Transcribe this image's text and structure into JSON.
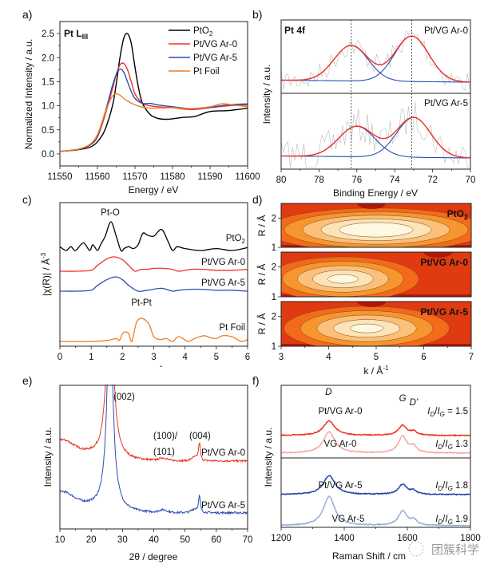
{
  "chart_data": [
    {
      "panel": "a)",
      "type": "line",
      "title": "Pt L_III",
      "xlabel": "Energy / eV",
      "ylabel": "Normalized Intensity / a.u.",
      "xlim": [
        11550,
        11600
      ],
      "ylim": [
        -0.25,
        2.75
      ],
      "xticks": [
        "11550",
        "11560",
        "11570",
        "11580",
        "11590",
        "11600"
      ],
      "yticks": [
        "0.0",
        "0.5",
        "1.0",
        "1.5",
        "2.0",
        "2.5"
      ],
      "legend": "top-right",
      "series": [
        {
          "name": "PtO2",
          "color": "#000000",
          "x": [
            11550,
            11555,
            11558,
            11560,
            11562,
            11564,
            11565,
            11566,
            11567,
            11568,
            11569,
            11570,
            11571,
            11572,
            11574,
            11576,
            11578,
            11580,
            11583,
            11586,
            11590,
            11595,
            11600
          ],
          "y": [
            0.05,
            0.09,
            0.14,
            0.25,
            0.5,
            1.0,
            1.45,
            2.0,
            2.4,
            2.5,
            2.3,
            1.8,
            1.35,
            1.05,
            0.82,
            0.74,
            0.72,
            0.73,
            0.76,
            0.78,
            0.88,
            0.9,
            0.95
          ]
        },
        {
          "name": "Pt/VG Ar-0",
          "color": "#ee3324",
          "x": [
            11550,
            11555,
            11558,
            11560,
            11562,
            11564,
            11565,
            11566,
            11567,
            11568,
            11569,
            11570,
            11572,
            11574,
            11576,
            11580,
            11585,
            11590,
            11595,
            11600
          ],
          "y": [
            0.05,
            0.1,
            0.18,
            0.35,
            0.8,
            1.35,
            1.65,
            1.85,
            1.88,
            1.75,
            1.5,
            1.25,
            1.05,
            1.0,
            0.98,
            0.96,
            0.92,
            0.96,
            1.0,
            1.02
          ]
        },
        {
          "name": "Pt/VG Ar-5",
          "color": "#2b4db5",
          "x": [
            11550,
            11555,
            11558,
            11560,
            11562,
            11564,
            11565,
            11566,
            11567,
            11568,
            11569,
            11570,
            11572,
            11574,
            11576,
            11580,
            11585,
            11590,
            11595,
            11600
          ],
          "y": [
            0.05,
            0.1,
            0.19,
            0.37,
            0.85,
            1.42,
            1.65,
            1.76,
            1.7,
            1.5,
            1.3,
            1.15,
            1.05,
            1.05,
            1.02,
            0.98,
            0.94,
            0.97,
            1.02,
            1.04
          ]
        },
        {
          "name": "Pt Foil",
          "color": "#f27c21",
          "x": [
            11550,
            11555,
            11558,
            11560,
            11562,
            11563,
            11564,
            11565,
            11566,
            11567,
            11568,
            11570,
            11572,
            11575,
            11580,
            11585,
            11590,
            11593,
            11596,
            11600
          ],
          "y": [
            0.05,
            0.1,
            0.2,
            0.4,
            0.85,
            1.05,
            1.2,
            1.25,
            1.22,
            1.15,
            1.1,
            1.02,
            0.97,
            0.95,
            0.96,
            0.94,
            0.98,
            1.04,
            1.02,
            0.98
          ]
        }
      ]
    },
    {
      "panel": "b)",
      "type": "line",
      "title": "Pt 4f",
      "xlabel": "Binding Energy / eV",
      "ylabel": "Intensity / a.u.",
      "xlim": [
        80,
        70
      ],
      "xticks": [
        "80",
        "78",
        "76",
        "74",
        "72",
        "70"
      ],
      "reference_lines": [
        76.3,
        73.1
      ],
      "subplots": [
        {
          "label": "Pt/VG Ar-0",
          "peaks": [
            {
              "center": 76.3,
              "height": 0.78,
              "width": 0.9
            },
            {
              "center": 73.1,
              "height": 1.0,
              "width": 0.9
            }
          ],
          "fit_color": "#ee3324",
          "component_color": "#2b4db5",
          "raw_color": "#bbbbbb"
        },
        {
          "label": "Pt/VG Ar-5",
          "peaks": [
            {
              "center": 76.0,
              "height": 0.65,
              "width": 0.95
            },
            {
              "center": 73.0,
              "height": 0.85,
              "width": 0.9
            }
          ],
          "fit_color": "#ee3324",
          "component_color": "#2b4db5",
          "raw_color": "#bbbbbb"
        }
      ]
    },
    {
      "panel": "c)",
      "type": "line",
      "xlabel": "R / Å",
      "ylabel": "|χ(R)| / Å^-3",
      "xlim": [
        0,
        6
      ],
      "xticks": [
        "0",
        "1",
        "2",
        "3",
        "4",
        "5",
        "6"
      ],
      "annotations": [
        "Pt-O",
        "Pt-Pt"
      ],
      "series": [
        {
          "name": "PtO2",
          "color": "#000000",
          "x": [
            0,
            0.2,
            0.35,
            0.5,
            0.75,
            0.95,
            1.05,
            1.2,
            1.3,
            1.45,
            1.63,
            1.8,
            1.95,
            2.05,
            2.2,
            2.35,
            2.5,
            2.65,
            2.8,
            3.0,
            3.25,
            3.45,
            3.6,
            3.75,
            4.0,
            4.5,
            5.0,
            5.5,
            6.0
          ],
          "y": [
            0.04,
            0.0,
            0.04,
            0.0,
            0.08,
            0.0,
            0.06,
            0.0,
            0.06,
            0.15,
            0.3,
            0.15,
            0.0,
            0.02,
            0.04,
            0.02,
            0.06,
            0.18,
            0.16,
            0.15,
            0.22,
            0.1,
            0.0,
            0.04,
            0.02,
            0.0,
            0.02,
            0.0,
            0.03
          ]
        },
        {
          "name": "Pt/VG Ar-0",
          "color": "#ee3324",
          "x": [
            0,
            0.5,
            1.0,
            1.2,
            1.5,
            1.75,
            2.0,
            2.2,
            2.4,
            2.6,
            2.8,
            3.0,
            3.3,
            3.6,
            3.8,
            4.2,
            4.6,
            5.0,
            5.5,
            6.0
          ],
          "y": [
            0.0,
            0.0,
            0.01,
            0.06,
            0.13,
            0.15,
            0.12,
            0.06,
            0.0,
            0.02,
            0.02,
            0.03,
            0.03,
            0.02,
            0.0,
            0.02,
            0.02,
            0.01,
            0.01,
            0.02
          ]
        },
        {
          "name": "Pt/VG Ar-5",
          "color": "#2b4db5",
          "x": [
            0,
            0.5,
            1.0,
            1.2,
            1.5,
            1.78,
            2.0,
            2.2,
            2.5,
            2.8,
            3.25,
            3.6,
            3.8,
            4.2,
            4.5,
            5.0,
            5.5,
            6.0
          ],
          "y": [
            0.0,
            0.0,
            0.01,
            0.06,
            0.12,
            0.15,
            0.12,
            0.06,
            0.0,
            0.01,
            0.03,
            0.0,
            0.01,
            0.02,
            0.02,
            0.01,
            0.01,
            0.0
          ]
        },
        {
          "name": "Pt Foil",
          "color": "#f27c21",
          "x": [
            0,
            0.5,
            1.0,
            1.5,
            1.8,
            1.9,
            2.0,
            2.1,
            2.2,
            2.3,
            2.45,
            2.63,
            2.85,
            3.0,
            3.2,
            3.4,
            3.6,
            3.8,
            4.1,
            4.3,
            4.6,
            4.8,
            5.0,
            5.2,
            5.5,
            5.8,
            6.0
          ],
          "y": [
            0.0,
            0.0,
            0.0,
            0.01,
            0.03,
            0.01,
            0.08,
            0.1,
            0.08,
            0.0,
            0.2,
            0.24,
            0.18,
            0.05,
            0.02,
            0.03,
            0.0,
            0.05,
            0.0,
            0.03,
            0.06,
            0.04,
            0.03,
            0.06,
            0.05,
            0.0,
            0.02
          ]
        }
      ]
    },
    {
      "panel": "d)",
      "type": "heatmap",
      "xlabel": "k / Å^-1",
      "ylabel": "R / Å",
      "xlim": [
        3,
        7
      ],
      "ylim": [
        1,
        2.5
      ],
      "xticks": [
        "3",
        "4",
        "5",
        "6",
        "7"
      ],
      "yticks": [
        "1",
        "2"
      ],
      "colormap": [
        "#b01808",
        "#e03a10",
        "#f26a1a",
        "#f7962e",
        "#fbc07a",
        "#fde4b8",
        "#fff8e0"
      ],
      "subplots": [
        {
          "label": "PtO2",
          "centers": [
            {
              "k": 5.0,
              "R": 1.6,
              "level": 6,
              "sk": 1.6,
              "sR": 0.25
            }
          ]
        },
        {
          "label": "Pt/VG Ar-0",
          "centers": [
            {
              "k": 4.3,
              "R": 1.6,
              "level": 5,
              "sk": 1.1,
              "sR": 0.35
            }
          ]
        },
        {
          "label": "Pt/VG Ar-5",
          "centers": [
            {
              "k": 4.8,
              "R": 1.6,
              "level": 5,
              "sk": 1.2,
              "sR": 0.3
            }
          ]
        }
      ]
    },
    {
      "panel": "e)",
      "type": "line",
      "xlabel": "2θ / degree",
      "ylabel": "Intensity / a.u.",
      "xlim": [
        10,
        70
      ],
      "xticks": [
        "10",
        "20",
        "30",
        "40",
        "50",
        "60",
        "70"
      ],
      "annotations": [
        "(002)",
        "(100)/",
        "(101)",
        "(004)"
      ],
      "peaks": [
        {
          "two_theta": 26.0,
          "label": "(002)"
        },
        {
          "two_theta": 43.0,
          "label": "(100)/(101)"
        },
        {
          "two_theta": 54.6,
          "label": "(004)"
        }
      ],
      "series": [
        {
          "name": "Pt/VG Ar-0",
          "color": "#ee3324"
        },
        {
          "name": "Pt/VG Ar-5",
          "color": "#2b4db5"
        }
      ]
    },
    {
      "panel": "f)",
      "type": "line",
      "xlabel": "Raman Shift / cm",
      "ylabel": "Intensity / a.u.",
      "xlim": [
        1200,
        1800
      ],
      "xticks": [
        "1200",
        "1400",
        "1600",
        "1800"
      ],
      "band_labels": [
        {
          "name": "D",
          "pos": 1350
        },
        {
          "name": "G",
          "pos": 1585
        },
        {
          "name": "D'",
          "pos": 1620
        }
      ],
      "series": [
        {
          "name": "Pt/VG Ar-0",
          "color": "#ee3324",
          "ratio_label": "= 1.5",
          "ID_IG": 1.5,
          "D": 0.65,
          "G": 0.45
        },
        {
          "name": "VG Ar-0",
          "color": "#f4a5a5",
          "ratio_label": "1.3",
          "ID_IG": 1.3,
          "D": 0.95,
          "G": 0.75
        },
        {
          "name": "Pt/VG Ar-5",
          "color": "#1f45a5",
          "ratio_label": "1.8",
          "ID_IG": 1.8,
          "D": 0.85,
          "G": 0.45
        },
        {
          "name": "VG Ar-5",
          "color": "#98acdc",
          "ratio_label": "1.9",
          "ID_IG": 1.9,
          "D": 1.3,
          "G": 0.65
        }
      ]
    }
  ],
  "labels": {
    "a": "a)",
    "b": "b)",
    "c": "c)",
    "d": "d)",
    "e": "e)",
    "f": "f)",
    "a_title_main": "Pt L",
    "a_title_sub": "III",
    "b_title": "Pt 4f",
    "c_pto": "Pt-O",
    "c_ptpt": "Pt-Pt",
    "d_sub0": "PtO",
    "d_sub0_sub": "2",
    "d_sub1": "Pt/VG Ar-0",
    "d_sub2": "Pt/VG Ar-5",
    "d_ylabel": "R / Å",
    "c_ylabel_main": "|χ(R)| / Å",
    "c_ylabel_sup": "-3",
    "d_xlabel_main": "k / Å",
    "d_xlabel_sup": "-1",
    "legend_pto2_main": "PtO",
    "legend_pto2_sub": "2",
    "ptO2_label_main": "PtO",
    "ptO2_label_sub": "2",
    "f_ratio_prefix_I": "I",
    "f_ratio_D": "D",
    "f_ratio_G": "G",
    "e_ann_100": "(100)/",
    "e_ann_101": "(101)"
  },
  "watermark": "团簇科学"
}
